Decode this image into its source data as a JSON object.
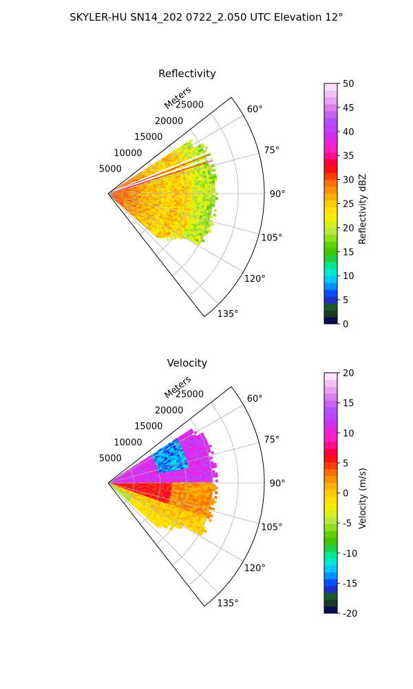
{
  "figure_title": "SKYLER-HU  SN14_202  0722_2.050 UTC Elevation 12°",
  "chart_data": [
    {
      "type": "heatmap",
      "projection": "polar-sector (radar PPI)",
      "title": "Reflectivity",
      "radial_axis_label": "Meters",
      "radial_ticks": [
        5000,
        10000,
        15000,
        20000,
        25000
      ],
      "radial_range": [
        0,
        30000
      ],
      "azimuth_ticks_deg": [
        60,
        75,
        90,
        105,
        120,
        135
      ],
      "azimuth_range_deg": [
        52,
        142
      ],
      "grid": true,
      "colorbar": {
        "label": "Reflectivity dBZ",
        "range": [
          0,
          50
        ],
        "ticks": [
          0,
          5,
          10,
          15,
          20,
          25,
          30,
          35,
          40,
          45,
          50
        ],
        "colors": [
          "#0b0b50",
          "#1a3a28",
          "#1a5a2a",
          "#2030c0",
          "#0050ff",
          "#0090ff",
          "#00c8ff",
          "#00e8d0",
          "#00e890",
          "#20d040",
          "#40c800",
          "#60d000",
          "#90e020",
          "#b8e840",
          "#d8f020",
          "#f0f000",
          "#ffe000",
          "#ffcc00",
          "#ffb000",
          "#ff9000",
          "#ff7000",
          "#ff4000",
          "#ff1010",
          "#ff0040",
          "#ff1090",
          "#ff20c0",
          "#f020e0",
          "#d030f0",
          "#c040ff",
          "#b050ff",
          "#c860f0",
          "#d880e8",
          "#e8a0f0",
          "#f0c0f0",
          "#f8e0f8"
        ]
      }
    },
    {
      "type": "heatmap",
      "projection": "polar-sector (radar PPI)",
      "title": "Velocity",
      "radial_axis_label": "Meters",
      "radial_ticks": [
        5000,
        10000,
        15000,
        20000,
        25000
      ],
      "radial_range": [
        0,
        30000
      ],
      "azimuth_ticks_deg": [
        60,
        75,
        90,
        105,
        120,
        135
      ],
      "azimuth_range_deg": [
        52,
        142
      ],
      "grid": true,
      "colorbar": {
        "label": "Velocity (m/s)",
        "range": [
          -20,
          20
        ],
        "ticks": [
          -20,
          -15,
          -10,
          -5,
          0,
          5,
          10,
          15,
          20
        ],
        "colors": [
          "#0b0b50",
          "#1a3a28",
          "#1a5a2a",
          "#2030c0",
          "#0050ff",
          "#0090ff",
          "#00c8ff",
          "#00e8d0",
          "#00e890",
          "#20d040",
          "#40c800",
          "#60d000",
          "#90e020",
          "#b8e840",
          "#d8f020",
          "#f0f000",
          "#ffe000",
          "#ffcc00",
          "#ffb000",
          "#ff9000",
          "#ff7000",
          "#ff4000",
          "#ff1010",
          "#ff0040",
          "#ff1090",
          "#ff20c0",
          "#f020e0",
          "#d030f0",
          "#c040ff",
          "#b050ff",
          "#c860f0",
          "#d880e8",
          "#e8a0f0",
          "#f0c0f0",
          "#f8e0f8"
        ]
      }
    }
  ]
}
